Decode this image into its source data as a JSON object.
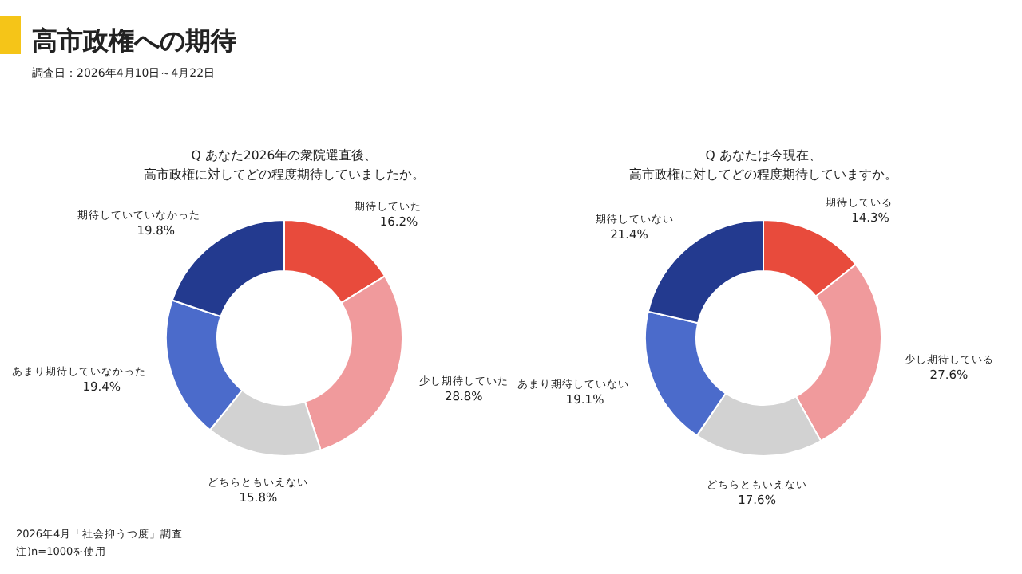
{
  "chart_data": [
    {
      "type": "donut",
      "title": "Q あなた2026年の衆院選直後、高市政権に対してどの程度期待していましたか。",
      "annotations": [
        "高市政権への期待",
        "調査日：2026年4月10日～4月22日",
        "2026年4月「社会抑うつ度」調査",
        "注)n=1000を使用"
      ],
      "categories": [
        "期待していた",
        "少し期待していた",
        "どちらともいえない",
        "あまり期待していなかった",
        "期待していていなかった"
      ],
      "values": [
        16.2,
        28.8,
        15.8,
        19.4,
        19.8
      ],
      "value_labels": [
        "16.2%",
        "28.8%",
        "15.8%",
        "19.4%",
        "19.8%"
      ],
      "colors": [
        "#e84b3c",
        "#f09a9c",
        "#d2d2d2",
        "#4b6bcb",
        "#233a8f"
      ]
    },
    {
      "type": "donut",
      "title": "Q あなたは今現在、高市政権に対してどの程度期待していますか。",
      "categories": [
        "期待している",
        "少し期待している",
        "どちらともいえない",
        "あまり期待していない",
        "期待していない"
      ],
      "values": [
        14.3,
        27.6,
        17.6,
        19.1,
        21.4
      ],
      "value_labels": [
        "14.3%",
        "27.6%",
        "17.6%",
        "19.1%",
        "21.4%"
      ],
      "colors": [
        "#e84b3c",
        "#f09a9c",
        "#d2d2d2",
        "#4b6bcb",
        "#233a8f"
      ]
    }
  ]
}
